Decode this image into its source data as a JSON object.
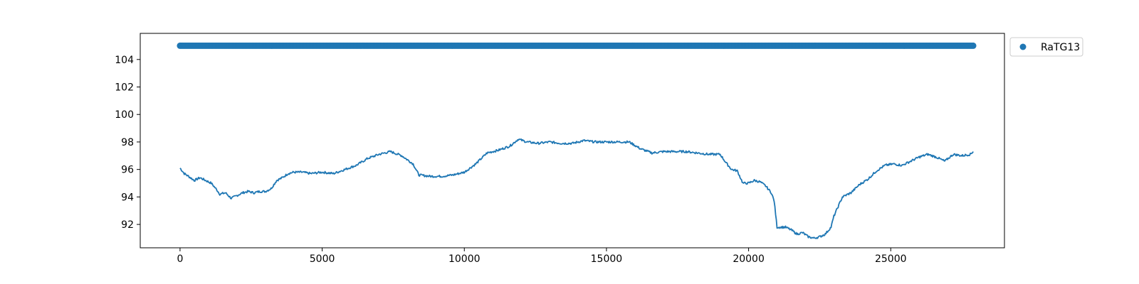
{
  "chart_data": {
    "type": "line",
    "title": "",
    "xlabel": "",
    "ylabel": "",
    "xlim": [
      -1400,
      29000
    ],
    "ylim": [
      90.3,
      105.9
    ],
    "x_ticks": [
      0,
      5000,
      10000,
      15000,
      20000,
      25000
    ],
    "y_ticks": [
      92,
      94,
      96,
      98,
      100,
      102,
      104
    ],
    "grid": false,
    "legend": {
      "placement": "outside-top-right",
      "entries": [
        "RaTG13"
      ]
    },
    "series": [
      {
        "name": "RaTG13",
        "kind": "scatter",
        "color": "#1f77b4",
        "y": 105,
        "x_start": 0,
        "x_end": 27900,
        "x_step": 50
      },
      {
        "kind": "line",
        "color": "#1f77b4",
        "x": [
          0,
          150,
          300,
          500,
          700,
          900,
          1100,
          1300,
          1400,
          1600,
          1800,
          2000,
          2200,
          2400,
          2600,
          2800,
          3000,
          3200,
          3400,
          3600,
          3800,
          4000,
          4300,
          4600,
          5000,
          5400,
          5800,
          6200,
          6600,
          7000,
          7400,
          7800,
          8200,
          8400,
          8800,
          9200,
          9600,
          10000,
          10400,
          10800,
          11200,
          11600,
          11900,
          12200,
          12600,
          13000,
          13400,
          13800,
          14200,
          14600,
          15000,
          15400,
          15800,
          16200,
          16600,
          17000,
          17400,
          17800,
          18200,
          18600,
          19000,
          19200,
          19400,
          19600,
          19800,
          20000,
          20200,
          20400,
          20600,
          20800,
          20900,
          21000,
          21100,
          21300,
          21500,
          21700,
          21900,
          22100,
          22300,
          22500,
          22700,
          22900,
          23000,
          23300,
          23600,
          23900,
          24200,
          24500,
          24800,
          25100,
          25400,
          25700,
          26000,
          26300,
          26600,
          26900,
          27200,
          27500,
          27800,
          27900
        ],
        "y": [
          96.1,
          95.7,
          95.5,
          95.2,
          95.4,
          95.2,
          95.0,
          94.5,
          94.2,
          94.3,
          93.9,
          94.1,
          94.3,
          94.4,
          94.3,
          94.4,
          94.4,
          94.6,
          95.2,
          95.4,
          95.7,
          95.8,
          95.8,
          95.7,
          95.8,
          95.7,
          96.0,
          96.3,
          96.8,
          97.1,
          97.3,
          97.0,
          96.4,
          95.6,
          95.5,
          95.5,
          95.6,
          95.8,
          96.4,
          97.2,
          97.4,
          97.7,
          98.2,
          98.0,
          97.9,
          98.0,
          97.9,
          97.9,
          98.1,
          98.0,
          98.0,
          98.0,
          98.0,
          97.5,
          97.2,
          97.3,
          97.3,
          97.3,
          97.2,
          97.1,
          97.1,
          96.5,
          96.0,
          95.9,
          95.0,
          95.0,
          95.2,
          95.1,
          94.8,
          94.3,
          93.7,
          91.8,
          91.8,
          91.8,
          91.6,
          91.3,
          91.4,
          91.1,
          91.0,
          91.1,
          91.3,
          91.8,
          92.6,
          94.0,
          94.3,
          94.9,
          95.3,
          95.9,
          96.3,
          96.4,
          96.3,
          96.6,
          96.9,
          97.1,
          96.9,
          96.6,
          97.1,
          97.0,
          97.1,
          97.3
        ]
      }
    ]
  }
}
